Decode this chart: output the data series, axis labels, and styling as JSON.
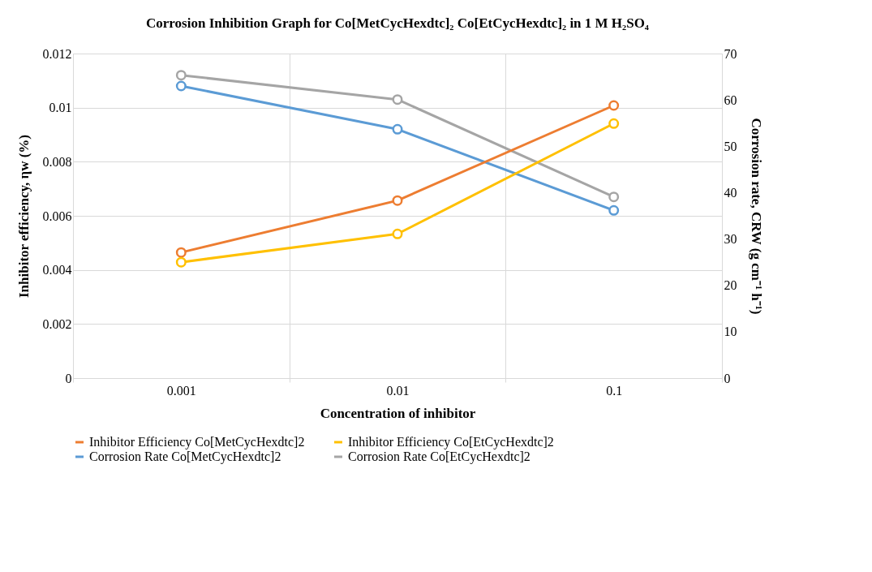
{
  "chart_data": {
    "type": "line",
    "title": "Corrosion Inhibition Graph for Co[MetCycHexdtc]₂ Co[EtCycHexdtc]₂ in 1 M H₂SO₄",
    "xlabel": "Concentration of inhibitor",
    "ylabel": "Inhibitor efficiency, ηw (%)",
    "y2label": "Corrosion rate, CRW (g cm⁻¹ h⁻¹)",
    "categories": [
      "0.001",
      "0.01",
      "0.1"
    ],
    "series": [
      {
        "name": "Inhibitor Efficiency Co[MetCycHexdtc]2",
        "color": "#ed7d31",
        "axis": "y2",
        "values": [
          27.1,
          38.3,
          58.8
        ]
      },
      {
        "name": "Inhibitor Efficiency Co[EtCycHexdtc]2",
        "color": "#ffc000",
        "axis": "y2",
        "values": [
          25.0,
          31.1,
          54.9
        ]
      },
      {
        "name": "Corrosion Rate Co[MetCycHexdtc]2",
        "color": "#5b9bd5",
        "axis": "y",
        "values": [
          0.0108,
          0.0092,
          0.0062
        ]
      },
      {
        "name": "Corrosion Rate Co[EtCycHexdtc]2",
        "color": "#a5a5a5",
        "axis": "y",
        "values": [
          0.0112,
          0.0103,
          0.0067
        ]
      }
    ],
    "ylim": [
      0,
      0.012
    ],
    "yticks": [
      0,
      0.002,
      0.004,
      0.006,
      0.008,
      0.01,
      0.012
    ],
    "y2lim": [
      0,
      70
    ],
    "y2ticks": [
      0,
      10,
      20,
      30,
      40,
      50,
      60,
      70
    ],
    "grid": true,
    "legend": "bottom",
    "marker": "circle",
    "line_style": "solid"
  }
}
